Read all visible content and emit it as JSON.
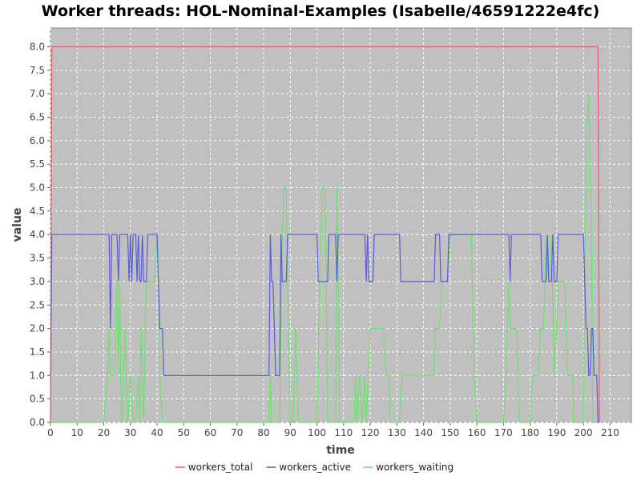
{
  "chart_data": {
    "type": "line",
    "title": "Worker threads: HOL-Nominal-Examples (Isabelle/46591222e4fc)",
    "xlabel": "time",
    "ylabel": "value",
    "xlim": [
      0,
      218
    ],
    "ylim": [
      0,
      8.4
    ],
    "x_ticks": [
      "0",
      "10",
      "20",
      "30",
      "40",
      "50",
      "60",
      "70",
      "80",
      "90",
      "100",
      "110",
      "120",
      "130",
      "140",
      "150",
      "160",
      "170",
      "180",
      "190",
      "200",
      "210"
    ],
    "y_ticks": [
      "0.0",
      "0.5",
      "1.0",
      "1.5",
      "2.0",
      "2.5",
      "3.0",
      "3.5",
      "4.0",
      "4.5",
      "5.0",
      "5.5",
      "6.0",
      "6.5",
      "7.0",
      "7.5",
      "8.0"
    ],
    "grid": true,
    "legend_position": "bottom",
    "series": [
      {
        "name": "workers_total",
        "color": "#e06060",
        "points": [
          [
            0,
            0
          ],
          [
            0.5,
            8
          ],
          [
            205.5,
            8
          ],
          [
            206,
            0
          ]
        ]
      },
      {
        "name": "workers_active",
        "color": "#5a5ae0",
        "points": [
          [
            0,
            0
          ],
          [
            0.5,
            4
          ],
          [
            22,
            4
          ],
          [
            22.5,
            2
          ],
          [
            23,
            4
          ],
          [
            25,
            4
          ],
          [
            25.5,
            3
          ],
          [
            26,
            4
          ],
          [
            29,
            4
          ],
          [
            29.5,
            3
          ],
          [
            30,
            4
          ],
          [
            30.5,
            3
          ],
          [
            31,
            4
          ],
          [
            32,
            4
          ],
          [
            32.5,
            3
          ],
          [
            33,
            4
          ],
          [
            33.5,
            3
          ],
          [
            34,
            3
          ],
          [
            34.5,
            4
          ],
          [
            35,
            3
          ],
          [
            36,
            3
          ],
          [
            36.5,
            4
          ],
          [
            40,
            4
          ],
          [
            40.5,
            3
          ],
          [
            41,
            2
          ],
          [
            42,
            2
          ],
          [
            42.5,
            1
          ],
          [
            82,
            1
          ],
          [
            82.5,
            4
          ],
          [
            83,
            3
          ],
          [
            83.5,
            3
          ],
          [
            84,
            2
          ],
          [
            84.5,
            1
          ],
          [
            86,
            1
          ],
          [
            86.5,
            4
          ],
          [
            87,
            3
          ],
          [
            88.5,
            3
          ],
          [
            89,
            4
          ],
          [
            100,
            4
          ],
          [
            100.5,
            3
          ],
          [
            104,
            3
          ],
          [
            104.5,
            4
          ],
          [
            107,
            4
          ],
          [
            107.5,
            3
          ],
          [
            108,
            4
          ],
          [
            118,
            4
          ],
          [
            118.5,
            3
          ],
          [
            119,
            4
          ],
          [
            119.5,
            3
          ],
          [
            121,
            3
          ],
          [
            121.5,
            4
          ],
          [
            131,
            4
          ],
          [
            131.5,
            3
          ],
          [
            144,
            3
          ],
          [
            144.5,
            4
          ],
          [
            146,
            4
          ],
          [
            146.5,
            3
          ],
          [
            149,
            3
          ],
          [
            149.5,
            4
          ],
          [
            172,
            4
          ],
          [
            172.5,
            3
          ],
          [
            173,
            4
          ],
          [
            184,
            4
          ],
          [
            184.5,
            3
          ],
          [
            186,
            3
          ],
          [
            186.5,
            4
          ],
          [
            187,
            3
          ],
          [
            188,
            3
          ],
          [
            188.5,
            4
          ],
          [
            189,
            3
          ],
          [
            190,
            3
          ],
          [
            190.5,
            4
          ],
          [
            200,
            4
          ],
          [
            201,
            2
          ],
          [
            201.5,
            2
          ],
          [
            202,
            1
          ],
          [
            202.5,
            1
          ],
          [
            203,
            2
          ],
          [
            203.5,
            2
          ],
          [
            204,
            1
          ],
          [
            205,
            1
          ],
          [
            205.5,
            0
          ],
          [
            206,
            0
          ]
        ]
      },
      {
        "name": "workers_waiting",
        "color": "#70e070",
        "points": [
          [
            0,
            0
          ],
          [
            20,
            0
          ],
          [
            21.5,
            1
          ],
          [
            22,
            2
          ],
          [
            22.5,
            1
          ],
          [
            24,
            1
          ],
          [
            25,
            3
          ],
          [
            25.5,
            1
          ],
          [
            26,
            3
          ],
          [
            26.5,
            0
          ],
          [
            27,
            0
          ],
          [
            28,
            2
          ],
          [
            29,
            0
          ],
          [
            30,
            1
          ],
          [
            31,
            0
          ],
          [
            32,
            0
          ],
          [
            33,
            1
          ],
          [
            33.5,
            0
          ],
          [
            34,
            2
          ],
          [
            35,
            0
          ],
          [
            35.5,
            2
          ],
          [
            36,
            3
          ],
          [
            39,
            3
          ],
          [
            40,
            4
          ],
          [
            40.5,
            3
          ],
          [
            41,
            1
          ],
          [
            42,
            0
          ],
          [
            82,
            0
          ],
          [
            82.5,
            1
          ],
          [
            83,
            0
          ],
          [
            86,
            0
          ],
          [
            87,
            4
          ],
          [
            87.5,
            5
          ],
          [
            88.5,
            5
          ],
          [
            89,
            3
          ],
          [
            90,
            0
          ],
          [
            91,
            0
          ],
          [
            92,
            2
          ],
          [
            93,
            0
          ],
          [
            100,
            0
          ],
          [
            101,
            3
          ],
          [
            102,
            5
          ],
          [
            103,
            5
          ],
          [
            103.5,
            3
          ],
          [
            104,
            0
          ],
          [
            107,
            0
          ],
          [
            107.5,
            5
          ],
          [
            108,
            3
          ],
          [
            108.5,
            0
          ],
          [
            114,
            0
          ],
          [
            114.5,
            1
          ],
          [
            115,
            0
          ],
          [
            116,
            1
          ],
          [
            117,
            0
          ],
          [
            118,
            1
          ],
          [
            118.5,
            0
          ],
          [
            120,
            2
          ],
          [
            125,
            2
          ],
          [
            126,
            1
          ],
          [
            127,
            1
          ],
          [
            127.5,
            0
          ],
          [
            131,
            0
          ],
          [
            132,
            1
          ],
          [
            144,
            1
          ],
          [
            144.5,
            2
          ],
          [
            146,
            2
          ],
          [
            147,
            3
          ],
          [
            149,
            3
          ],
          [
            150,
            4
          ],
          [
            158,
            4
          ],
          [
            159,
            1
          ],
          [
            160,
            0
          ],
          [
            170,
            0
          ],
          [
            171,
            1
          ],
          [
            172,
            3
          ],
          [
            172.5,
            2
          ],
          [
            175,
            2
          ],
          [
            176,
            0
          ],
          [
            180,
            0
          ],
          [
            181,
            1
          ],
          [
            183,
            1
          ],
          [
            184,
            2
          ],
          [
            185,
            2
          ],
          [
            186,
            4
          ],
          [
            187,
            3
          ],
          [
            188,
            4
          ],
          [
            189,
            1
          ],
          [
            190,
            2
          ],
          [
            190.5,
            3
          ],
          [
            193,
            3
          ],
          [
            194,
            1
          ],
          [
            196,
            1
          ],
          [
            196.5,
            0
          ],
          [
            200,
            0
          ],
          [
            201,
            6
          ],
          [
            202,
            7
          ],
          [
            203,
            4
          ],
          [
            203.5,
            0
          ],
          [
            206,
            0
          ]
        ]
      }
    ]
  }
}
